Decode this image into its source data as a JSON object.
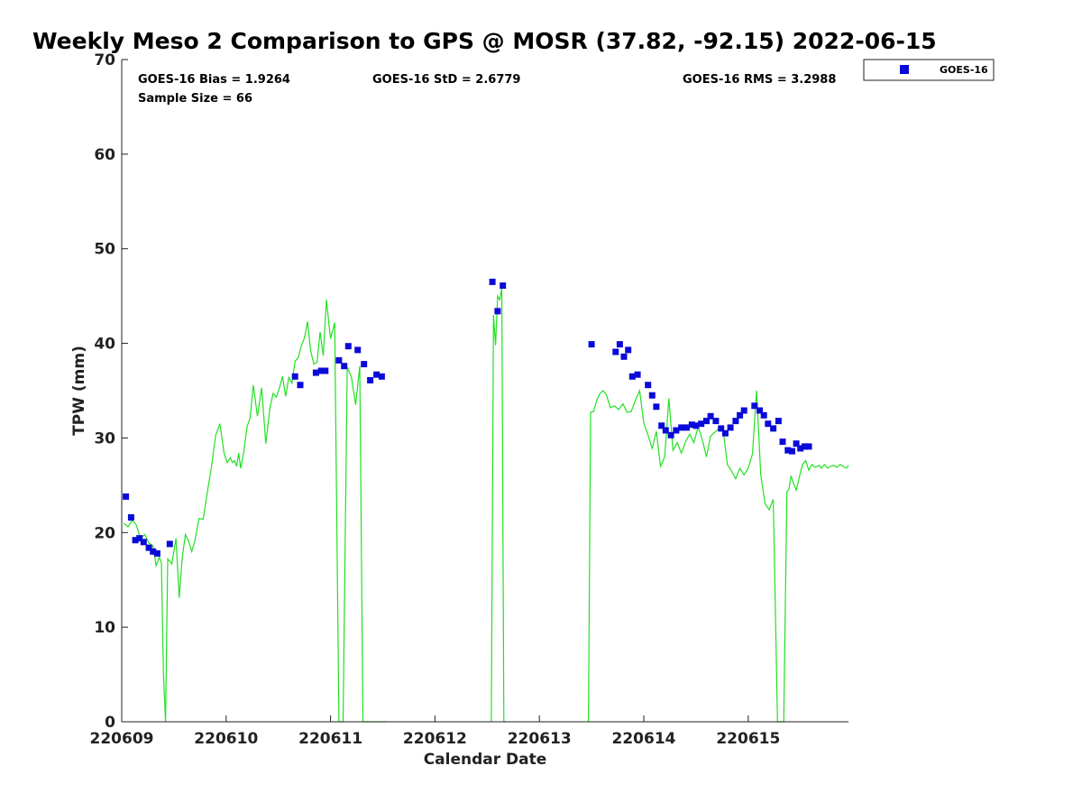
{
  "chart_data": {
    "type": "scatter",
    "title": "Weekly Meso 2 Comparison to GPS @ MOSR (37.82, -92.15) 2022-06-15",
    "xlabel": "Calendar Date",
    "ylabel": "TPW (mm)",
    "xlim": [
      0,
      6.96
    ],
    "ylim": [
      0,
      70
    ],
    "x_tick_values": [
      0,
      1,
      2,
      3,
      4,
      5,
      6
    ],
    "x_tick_labels": [
      "220609",
      "220610",
      "220611",
      "220612",
      "220613",
      "220614",
      "220615"
    ],
    "y_tick_values": [
      0,
      10,
      20,
      30,
      40,
      50,
      60,
      70
    ],
    "y_tick_labels": [
      "0",
      "10",
      "20",
      "30",
      "40",
      "50",
      "60",
      "70"
    ],
    "grid": false,
    "legend": {
      "position": "top-right-outside",
      "entries": [
        "GOES-16"
      ]
    },
    "stats": {
      "bias": "GOES-16 Bias = 1.9264",
      "std": "GOES-16 StD = 2.6779",
      "rms": "GOES-16 RMS = 3.2988",
      "sample": "Sample Size = 66"
    },
    "colors": {
      "goes": "#0a0ad8",
      "gps": "#22e022"
    },
    "series": [
      {
        "name": "GOES-16",
        "kind": "markers",
        "x": [
          0.04,
          0.09,
          0.13,
          0.17,
          0.21,
          0.26,
          0.3,
          0.34,
          0.46,
          1.66,
          1.71,
          1.86,
          1.91,
          1.95,
          2.08,
          2.13,
          2.17,
          2.26,
          2.32,
          2.38,
          2.44,
          2.49,
          3.55,
          3.6,
          3.65,
          4.5,
          4.73,
          4.77,
          4.81,
          4.85,
          4.89,
          4.94,
          5.04,
          5.08,
          5.12,
          5.17,
          5.21,
          5.26,
          5.31,
          5.36,
          5.41,
          5.46,
          5.5,
          5.55,
          5.6,
          5.64,
          5.69,
          5.74,
          5.78,
          5.83,
          5.88,
          5.92,
          5.96,
          6.06,
          6.11,
          6.15,
          6.19,
          6.24,
          6.29,
          6.33,
          6.38,
          6.42,
          6.46,
          6.5,
          6.54,
          6.58
        ],
        "y": [
          23.8,
          21.6,
          19.2,
          19.4,
          19.0,
          18.4,
          18.0,
          17.8,
          18.8,
          36.5,
          35.6,
          36.9,
          37.1,
          37.1,
          38.2,
          37.6,
          39.7,
          39.3,
          37.8,
          36.1,
          36.7,
          36.5,
          46.5,
          43.4,
          46.1,
          39.9,
          39.1,
          39.9,
          38.6,
          39.3,
          36.5,
          36.7,
          35.6,
          34.5,
          33.3,
          31.3,
          30.8,
          30.3,
          30.8,
          31.1,
          31.1,
          31.4,
          31.3,
          31.5,
          31.8,
          32.3,
          31.8,
          31.0,
          30.5,
          31.1,
          31.8,
          32.4,
          32.9,
          33.4,
          32.9,
          32.4,
          31.5,
          31.0,
          31.8,
          29.6,
          28.7,
          28.6,
          29.4,
          28.9,
          29.1,
          29.1
        ]
      },
      {
        "name": "",
        "kind": "line",
        "segments": [
          {
            "x": [
              0.02,
              0.06,
              0.1,
              0.14,
              0.18,
              0.22,
              0.26,
              0.3,
              0.33,
              0.36,
              0.38,
              0.4,
              0.42
            ],
            "y": [
              21.0,
              20.6,
              21.3,
              20.8,
              19.4,
              19.8,
              18.9,
              18.6,
              16.5,
              17.4,
              16.8,
              5.0,
              0.0
            ]
          },
          {
            "x": [
              0.42,
              0.44,
              0.48,
              0.52,
              0.55,
              0.58,
              0.61,
              0.64,
              0.67,
              0.7,
              0.74,
              0.78,
              0.82,
              0.86,
              0.9,
              0.94,
              0.98,
              1.01,
              1.04,
              1.06,
              1.08,
              1.1,
              1.12,
              1.14,
              1.17,
              1.2,
              1.23,
              1.26,
              1.3,
              1.34,
              1.38,
              1.42,
              1.45,
              1.48,
              1.51,
              1.54,
              1.57,
              1.6,
              1.63,
              1.66,
              1.69,
              1.72,
              1.75,
              1.78,
              1.81,
              1.84,
              1.87,
              1.9,
              1.93,
              1.96,
              2.0,
              2.04,
              2.08,
              2.12,
              2.16,
              2.2,
              2.24,
              2.28,
              2.31,
              2.34,
              2.37,
              2.4,
              2.43,
              2.46,
              2.49,
              2.52,
              2.54
            ],
            "y": [
              0.0,
              17.2,
              16.7,
              19.4,
              13.1,
              17.4,
              19.8,
              19.1,
              18.0,
              19.1,
              21.5,
              21.4,
              24.3,
              27.0,
              30.3,
              31.5,
              28.4,
              27.4,
              27.9,
              27.4,
              27.6,
              27.0,
              28.4,
              26.8,
              28.6,
              31.2,
              32.1,
              35.6,
              32.3,
              35.3,
              29.4,
              33.2,
              34.7,
              34.3,
              35.3,
              36.5,
              34.4,
              36.4,
              35.8,
              38.1,
              38.5,
              39.7,
              40.6,
              42.3,
              39.2,
              37.8,
              38.0,
              41.2,
              38.7,
              44.6,
              40.5,
              42.2,
              0.0,
              0.0,
              37.5,
              36.4,
              33.5,
              37.6,
              0.0,
              0.0,
              0.0,
              0.0,
              0.0,
              0.0,
              0.0,
              0.0,
              0.0
            ]
          },
          {
            "x": [
              3.54,
              3.56,
              3.58,
              3.6,
              3.62,
              3.64,
              3.66,
              3.68
            ],
            "y": [
              0.0,
              43.0,
              39.8,
              45.0,
              44.6,
              45.8,
              0.0,
              0.0
            ]
          },
          {
            "x": [
              4.47,
              4.49,
              4.52,
              4.55,
              4.58,
              4.61,
              4.64,
              4.68,
              4.72,
              4.76,
              4.8,
              4.84,
              4.88,
              4.92,
              4.96,
              5.0,
              5.04,
              5.08,
              5.12,
              5.16,
              5.2,
              5.24,
              5.28,
              5.32,
              5.36,
              5.4,
              5.44,
              5.48,
              5.52,
              5.56,
              5.6,
              5.64,
              5.68,
              5.72,
              5.76,
              5.8,
              5.84,
              5.88,
              5.92,
              5.96,
              6.0,
              6.04,
              6.08,
              6.12,
              6.16,
              6.2,
              6.24,
              6.28,
              6.31,
              6.34,
              6.37,
              6.39,
              6.41,
              6.43,
              6.46,
              6.49,
              6.52,
              6.55,
              6.58,
              6.61,
              6.64,
              6.66,
              6.68,
              6.7,
              6.73,
              6.76,
              6.79,
              6.82,
              6.85,
              6.88,
              6.91,
              6.94,
              6.96
            ],
            "y": [
              0.0,
              32.7,
              32.8,
              34.0,
              34.7,
              35.0,
              34.6,
              33.2,
              33.4,
              33.0,
              33.6,
              32.7,
              32.8,
              34.0,
              35.0,
              31.6,
              30.3,
              28.9,
              30.7,
              27.0,
              28.0,
              34.2,
              28.7,
              29.5,
              28.4,
              29.6,
              30.4,
              29.5,
              31.2,
              29.8,
              28.0,
              30.2,
              30.6,
              31.0,
              30.9,
              27.2,
              26.5,
              25.7,
              26.8,
              26.1,
              26.8,
              28.3,
              35.0,
              26.1,
              23.1,
              22.4,
              23.5,
              0.0,
              0.0,
              0.0,
              24.3,
              24.6,
              26.0,
              25.3,
              24.5,
              25.9,
              27.2,
              27.6,
              26.6,
              27.2,
              26.9,
              27.0,
              27.1,
              26.8,
              27.2,
              26.8,
              27.0,
              27.1,
              26.9,
              27.2,
              27.0,
              26.8,
              27.1
            ]
          }
        ]
      }
    ]
  }
}
